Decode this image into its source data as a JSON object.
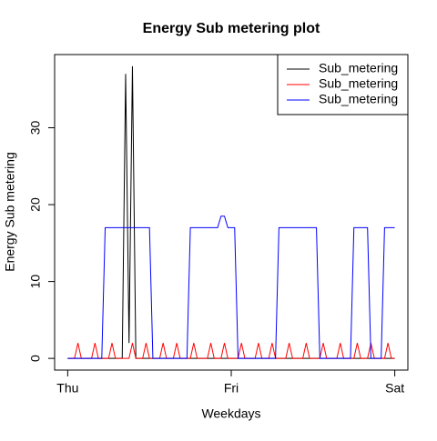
{
  "chart_data": {
    "type": "line",
    "title": "Energy Sub metering plot",
    "x_label": "Weekdays",
    "y_label": "Energy Sub metering",
    "categories": [
      "Thu",
      null,
      null,
      null,
      null,
      null,
      null,
      null,
      null,
      null,
      null,
      null,
      null,
      null,
      null,
      null,
      null,
      null,
      null,
      null,
      null,
      null,
      null,
      null,
      null,
      null,
      null,
      null,
      null,
      null,
      null,
      null,
      null,
      null,
      null,
      null,
      null,
      null,
      null,
      null,
      null,
      null,
      null,
      null,
      null,
      null,
      null,
      null,
      "Fri",
      null,
      null,
      null,
      null,
      null,
      null,
      null,
      null,
      null,
      null,
      null,
      null,
      null,
      null,
      null,
      null,
      null,
      null,
      null,
      null,
      null,
      null,
      null,
      null,
      null,
      null,
      null,
      null,
      null,
      null,
      null,
      null,
      null,
      null,
      null,
      null,
      null,
      null,
      null,
      null,
      null,
      null,
      null,
      null,
      null,
      null,
      null,
      "Sat"
    ],
    "series": [
      {
        "name": "Sub_metering",
        "color": "#000000",
        "values": [
          0,
          0,
          0,
          0,
          0,
          0,
          0,
          0,
          0,
          0,
          0,
          0,
          0,
          0,
          0,
          0,
          0,
          37,
          2,
          38,
          0,
          0,
          0,
          0,
          0,
          0,
          0,
          0,
          0,
          0,
          0,
          0,
          0,
          0,
          0,
          0,
          0,
          0,
          0,
          0,
          0,
          0,
          0,
          0,
          0,
          0,
          0,
          0,
          0,
          0,
          0,
          0,
          0,
          0,
          0,
          0,
          0,
          0,
          0,
          0,
          0,
          0,
          0,
          0,
          0,
          0,
          0,
          0,
          0,
          0,
          0,
          0,
          0,
          0,
          0,
          0,
          0,
          0,
          0,
          0,
          0,
          0,
          0,
          0,
          0,
          0,
          0,
          0,
          0,
          0,
          0,
          0,
          0,
          0,
          0,
          0,
          0
        ]
      },
      {
        "name": "Sub_metering",
        "color": "#ff0000",
        "values": [
          0,
          0,
          0,
          2,
          0,
          0,
          0,
          0,
          2,
          0,
          0,
          0,
          0,
          2,
          0,
          0,
          0,
          0,
          0,
          2,
          0,
          0,
          0,
          2,
          0,
          0,
          0,
          0,
          2,
          0,
          0,
          0,
          2,
          0,
          0,
          0,
          0,
          2,
          0,
          0,
          0,
          0,
          2,
          0,
          0,
          0,
          2,
          0,
          0,
          0,
          0,
          2,
          0,
          0,
          0,
          0,
          2,
          0,
          0,
          0,
          2,
          0,
          0,
          0,
          0,
          2,
          0,
          0,
          0,
          0,
          2,
          0,
          0,
          0,
          0,
          2,
          0,
          0,
          0,
          0,
          2,
          0,
          0,
          0,
          0,
          2,
          0,
          0,
          0,
          2,
          0,
          0,
          0,
          0,
          2,
          0,
          0
        ]
      },
      {
        "name": "Sub_metering",
        "color": "#0000ff",
        "values": [
          0,
          0,
          0,
          0,
          0,
          0,
          0,
          0,
          0,
          0,
          0,
          17,
          17,
          17,
          17,
          17,
          17,
          17,
          17,
          17,
          17,
          17,
          17,
          17,
          17,
          0,
          0,
          0,
          0,
          0,
          0,
          0,
          0,
          0,
          0,
          0,
          17,
          17,
          17,
          17,
          17,
          17,
          17,
          17,
          17,
          18.5,
          18.5,
          17,
          17,
          17,
          0,
          0,
          0,
          0,
          0,
          0,
          0,
          0,
          0,
          0,
          0,
          0,
          17,
          17,
          17,
          17,
          17,
          17,
          17,
          17,
          17,
          17,
          17,
          17,
          0,
          0,
          0,
          0,
          0,
          0,
          0,
          0,
          0,
          0,
          17,
          17,
          17,
          17,
          17,
          0,
          0,
          0,
          0,
          17,
          17,
          17,
          17
        ]
      }
    ],
    "ylim": [
      -1.52,
      39.52
    ],
    "yticks": [
      0,
      10,
      20,
      30
    ],
    "legend": "topright"
  }
}
